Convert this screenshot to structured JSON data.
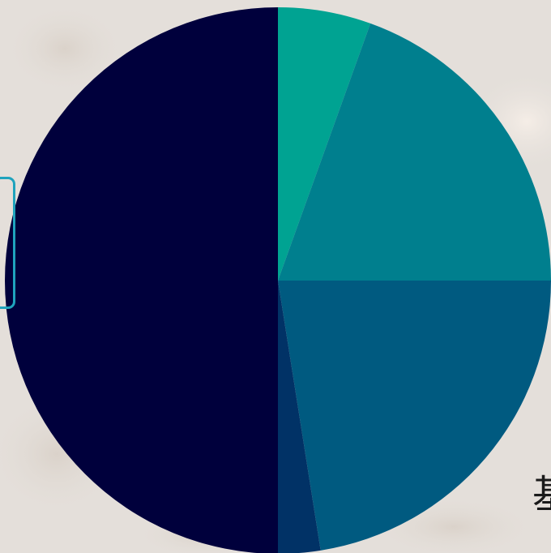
{
  "chart_data": {
    "type": "pie",
    "title": "",
    "start_angle_deg": 0,
    "direction": "clockwise",
    "slices": [
      {
        "value": 5.5,
        "color": "#00a392"
      },
      {
        "value": 19.5,
        "color": "#007f8e"
      },
      {
        "value": 22.5,
        "color": "#005a80"
      },
      {
        "value": 2.5,
        "color": "#013266"
      },
      {
        "value": 50.0,
        "color": "#00003c"
      }
    ],
    "legend": "none"
  },
  "decor": {
    "clipped_text": "基"
  }
}
